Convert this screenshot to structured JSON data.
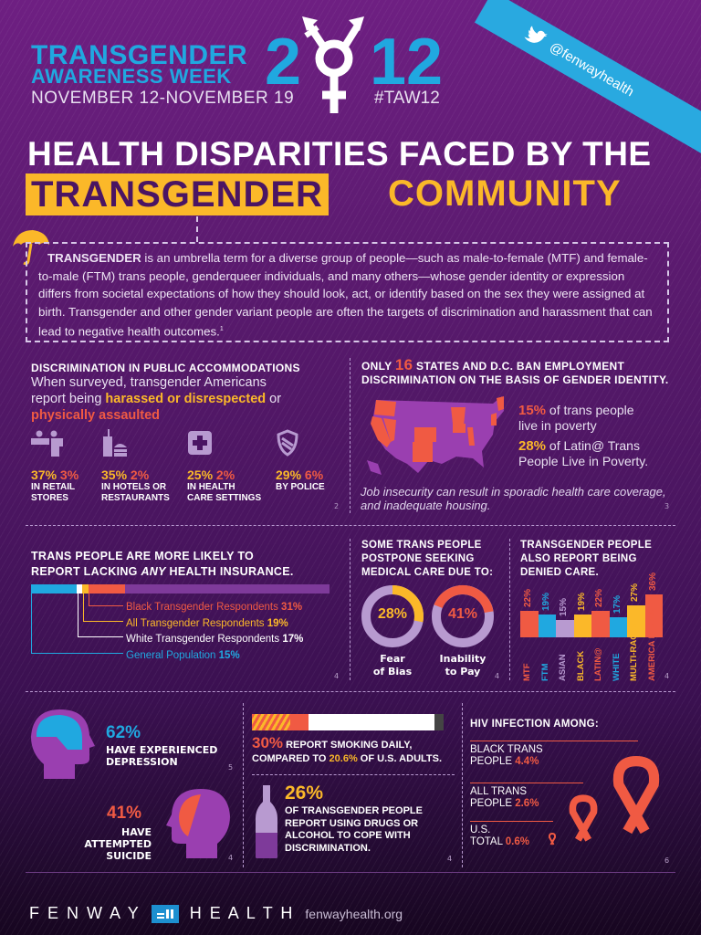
{
  "header": {
    "title_line1": "TRANSGENDER",
    "title_line2": "AWARENESS WEEK",
    "year": "2012",
    "dates": "NOVEMBER 12-NOVEMBER 19",
    "hashtag": "#TAW12",
    "twitter_handle": "@fenwayhealth"
  },
  "title": {
    "line1": "HEALTH DISPARITIES FACED BY THE",
    "highlight": "TRANSGENDER",
    "line2_rest": "COMMUNITY"
  },
  "intro": {
    "lead": "TRANSGENDER",
    "text": " is an umbrella term for a diverse group of people—such as male-to-female (MTF) and female-to-male (FTM) trans people, genderqueer individuals, and many others—whose gender identity or expression differs from societal expectations of how they should look, act, or identify based on the sex they were assigned at birth. Transgender and other gender variant people are often the targets of discrimination and harassment that can lead to negative health outcomes.",
    "footnote": "1"
  },
  "discrimination": {
    "heading": "DISCRIMINATION IN PUBLIC ACCOMMODATIONS",
    "sub1": "When surveyed, transgender Americans",
    "sub2": "report being ",
    "harassed": "harassed or disrespected",
    "or": " or",
    "assaulted": "physically assaulted",
    "footnote": "2",
    "items": [
      {
        "icon": "retail-counter-icon",
        "harassed": "37%",
        "assaulted": "3%",
        "label1": "IN RETAIL",
        "label2": "STORES"
      },
      {
        "icon": "fast-food-icon",
        "harassed": "35%",
        "assaulted": "2%",
        "label1": "IN HOTELS OR",
        "label2": "RESTAURANTS"
      },
      {
        "icon": "medical-cross-icon",
        "harassed": "25%",
        "assaulted": "2%",
        "label1": "IN HEALTH",
        "label2": "CARE SETTINGS"
      },
      {
        "icon": "police-shield-icon",
        "harassed": "29%",
        "assaulted": "6%",
        "label1": "BY POLICE",
        "label2": ""
      }
    ]
  },
  "employment": {
    "heading_pre": "ONLY ",
    "heading_num": "16",
    "heading_post": " STATES AND D.C. BAN EMPLOYMENT",
    "heading_line2": "DISCRIMINATION ON THE BASIS OF GENDER IDENTITY.",
    "stat1_num": "15%",
    "stat1_text1": " of trans people",
    "stat1_text2": "live in poverty",
    "stat2_num": "28%",
    "stat2_text1": " of Latin@ Trans",
    "stat2_text2": "People Live in Poverty.",
    "note": "Job insecurity can result in sporadic health care coverage, and inadequate housing.",
    "footnote": "3"
  },
  "insurance": {
    "heading1": "TRANS PEOPLE ARE MORE LIKELY TO",
    "heading2_pre": "REPORT LACKING ",
    "heading2_em": "ANY",
    "heading2_post": " HEALTH INSURANCE.",
    "footnote": "4",
    "rows": [
      {
        "label": "Black Transgender Respondents ",
        "value": "31%",
        "color": "#f05a43"
      },
      {
        "label": "All Transgender Respondents ",
        "value": "19%",
        "color": "#fbb829"
      },
      {
        "label": "White Transgender Respondents ",
        "value": "17%",
        "color": "#ffffff"
      },
      {
        "label": "General Population ",
        "value": "15%",
        "color": "#20a8e0"
      }
    ]
  },
  "postpone": {
    "heading1": "SOME TRANS PEOPLE",
    "heading2": "POSTPONE SEEKING",
    "heading3": "MEDICAL CARE DUE TO:",
    "footnote": "4",
    "donuts": [
      {
        "value": "28%",
        "label1": "Fear",
        "label2": "of Bias",
        "color": "#fbb829"
      },
      {
        "value": "41%",
        "label1": "Inability",
        "label2": "to Pay",
        "color": "#f05a43"
      }
    ]
  },
  "denied": {
    "heading1": "TRANSGENDER PEOPLE",
    "heading2": "ALSO REPORT BEING",
    "heading3": "DENIED CARE.",
    "footnote": "4",
    "bars": [
      {
        "cat": "MTF",
        "value": "22%",
        "color": "#f05a43"
      },
      {
        "cat": "FTM",
        "value": "19%",
        "color": "#20a8e0"
      },
      {
        "cat": "ASIAN",
        "value": "15%",
        "color": "#b89ad0"
      },
      {
        "cat": "BLACK",
        "value": "19%",
        "color": "#fbb829"
      },
      {
        "cat": "LATIN@",
        "value": "22%",
        "color": "#f05a43"
      },
      {
        "cat": "WHITE",
        "value": "17%",
        "color": "#20a8e0"
      },
      {
        "cat": "MULTI-RACIAL",
        "value": "27%",
        "color": "#fbb829"
      },
      {
        "cat": "AMERICA INDIAN",
        "value": "36%",
        "color": "#f05a43"
      }
    ]
  },
  "mental": {
    "depression_value": "62%",
    "depression_l1": "HAVE EXPERIENCED",
    "depression_l2": "DEPRESSION",
    "depression_fn": "5",
    "suicide_value": "41%",
    "suicide_l1": "HAVE ATTEMPTED",
    "suicide_l2": "SUICIDE",
    "suicide_fn": "4"
  },
  "substance": {
    "smoke_value": "30%",
    "smoke_text1": " REPORT SMOKING DAILY,",
    "smoke_text2_pre": "COMPARED TO ",
    "smoke_us": "20.6%",
    "smoke_text2_post": " OF U.S. ADULTS.",
    "drug_value": "26%",
    "drug_l1": "OF TRANSGENDER PEOPLE",
    "drug_l2": "REPORT USING DRUGS OR",
    "drug_l3": "ALCOHOL TO COPE WITH",
    "drug_l4": "DISCRIMINATION.",
    "footnote": "4"
  },
  "hiv": {
    "heading": "HIV INFECTION AMONG:",
    "footnote": "6",
    "rows": [
      {
        "l1": "BLACK TRANS",
        "l2": "PEOPLE ",
        "value": "4.4%"
      },
      {
        "l1": "ALL TRANS",
        "l2": "PEOPLE ",
        "value": "2.6%"
      },
      {
        "l1": "U.S.",
        "l2": "TOTAL ",
        "value": "0.6%"
      }
    ]
  },
  "footer": {
    "brand_left": "F E N W A Y",
    "brand_right": "H E A L T H",
    "url": "fenwayhealth.org"
  },
  "colors": {
    "blue": "#20a8e0",
    "yellow": "#fbb829",
    "red": "#f05a43",
    "lavender": "#b89ad0",
    "purple": "#5a1a6e"
  },
  "chart_data": [
    {
      "type": "bar",
      "title": "Lacking any health insurance",
      "categories": [
        "General Population",
        "White Transgender Respondents",
        "All Transgender Respondents",
        "Black Transgender Respondents"
      ],
      "values": [
        15,
        17,
        19,
        31
      ],
      "ylabel": "%"
    },
    {
      "type": "pie",
      "title": "Postpone seeking medical care due to",
      "categories": [
        "Fear of Bias",
        "Inability to Pay"
      ],
      "values": [
        28,
        41
      ]
    },
    {
      "type": "bar",
      "title": "Transgender people also report being denied care",
      "categories": [
        "MTF",
        "FTM",
        "ASIAN",
        "BLACK",
        "LATIN@",
        "WHITE",
        "MULTI-RACIAL",
        "AMERICA INDIAN"
      ],
      "values": [
        22,
        19,
        15,
        19,
        22,
        17,
        27,
        36
      ],
      "ylabel": "%"
    },
    {
      "type": "bar",
      "title": "HIV infection among",
      "categories": [
        "Black Trans People",
        "All Trans People",
        "U.S. Total"
      ],
      "values": [
        4.4,
        2.6,
        0.6
      ],
      "ylabel": "%"
    }
  ]
}
